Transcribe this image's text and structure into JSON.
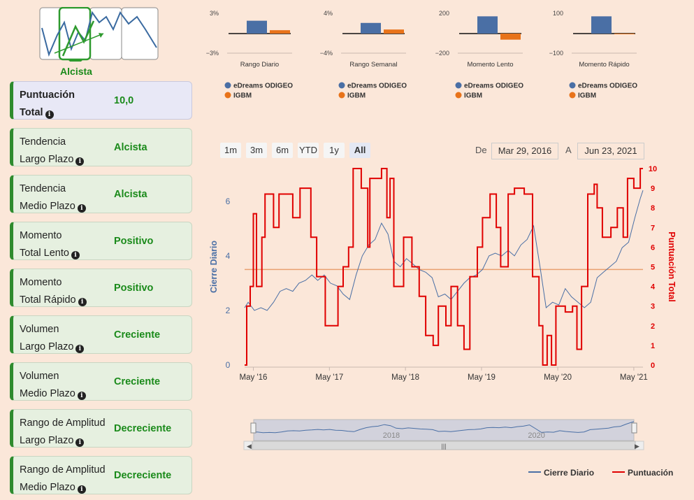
{
  "logo": {
    "label": "Alcista"
  },
  "cards": [
    {
      "label1": "Puntuación",
      "label2": "Total",
      "value": "10,0"
    },
    {
      "label1": "Tendencia",
      "label2": "Largo Plazo",
      "value": "Alcista"
    },
    {
      "label1": "Tendencia",
      "label2": "Medio Plazo",
      "value": "Alcista"
    },
    {
      "label1": "Momento",
      "label2": "Total Lento",
      "value": "Positivo"
    },
    {
      "label1": "Momento",
      "label2": "Total Rápido",
      "value": "Positivo"
    },
    {
      "label1": "Volumen",
      "label2": "Largo Plazo",
      "value": "Creciente"
    },
    {
      "label1": "Volumen",
      "label2": "Medio Plazo",
      "value": "Creciente"
    },
    {
      "label1": "Rango de Amplitud",
      "label2": "Largo Plazo",
      "value": "Decreciente"
    },
    {
      "label1": "Rango de Amplitud",
      "label2": "Medio Plazo",
      "value": "Decreciente"
    }
  ],
  "colors": {
    "stock": "#4a6fa5",
    "index": "#e8731a",
    "score": "#e00000",
    "positive": "#1a8a1a"
  },
  "mini_legend": {
    "stock": "eDreams ODIGEO",
    "index": "IGBM"
  },
  "range": {
    "buttons": [
      "1m",
      "3m",
      "6m",
      "YTD",
      "1y",
      "All"
    ],
    "active": "All",
    "from_label": "De",
    "from": "Mar 29, 2016",
    "to_label": "A",
    "to": "Jun 23, 2021"
  },
  "navigator": {
    "labels": [
      "2018",
      "2020"
    ]
  },
  "legend": {
    "close": "Cierre Diario",
    "score": "Puntuación"
  },
  "chart_data": [
    {
      "type": "bar",
      "title": "Rango Diario",
      "yticks": [
        "3%",
        "−3%"
      ],
      "ylim": [
        -3,
        3
      ],
      "series": [
        {
          "name": "eDreams ODIGEO",
          "values": [
            1.9
          ]
        },
        {
          "name": "IGBM",
          "values": [
            0.5
          ]
        }
      ]
    },
    {
      "type": "bar",
      "title": "Rango Semanal",
      "yticks": [
        "4%",
        "−4%"
      ],
      "ylim": [
        -4,
        4
      ],
      "series": [
        {
          "name": "eDreams ODIGEO",
          "values": [
            2.1
          ]
        },
        {
          "name": "IGBM",
          "values": [
            0.8
          ]
        }
      ]
    },
    {
      "type": "bar",
      "title": "Momento Lento",
      "yticks": [
        "200",
        "−200"
      ],
      "ylim": [
        -200,
        200
      ],
      "series": [
        {
          "name": "eDreams ODIGEO",
          "values": [
            170
          ]
        },
        {
          "name": "IGBM",
          "values": [
            -60
          ]
        }
      ]
    },
    {
      "type": "bar",
      "title": "Momento Rápido",
      "yticks": [
        "100",
        "−100"
      ],
      "ylim": [
        -100,
        100
      ],
      "series": [
        {
          "name": "eDreams ODIGEO",
          "values": [
            85
          ]
        },
        {
          "name": "IGBM",
          "values": [
            -3
          ]
        }
      ]
    },
    {
      "type": "line",
      "ylabel_left": "Cierre Diario",
      "ylabel_right": "Puntuación Total",
      "x_ticks": [
        "May '16",
        "May '17",
        "May '18",
        "May '19",
        "May '20",
        "May '21"
      ],
      "y_left_ticks": [
        0,
        2,
        4,
        6
      ],
      "y_left_lim": [
        0,
        7.2
      ],
      "y_right_ticks": [
        0,
        1,
        2,
        3,
        4,
        5,
        6,
        7,
        8,
        9,
        10
      ],
      "y_right_lim": [
        0,
        10
      ],
      "reference_line": 3.5,
      "x_lim": [
        "2016-03-29",
        "2021-06-23"
      ],
      "series": [
        {
          "name": "Cierre Diario",
          "points": [
            [
              "2016-03-29",
              2.1
            ],
            [
              "2016-04-15",
              2.3
            ],
            [
              "2016-05-15",
              2.0
            ],
            [
              "2016-06-15",
              2.1
            ],
            [
              "2016-07-15",
              2.0
            ],
            [
              "2016-08-15",
              2.3
            ],
            [
              "2016-09-15",
              2.7
            ],
            [
              "2016-10-15",
              2.8
            ],
            [
              "2016-11-15",
              2.7
            ],
            [
              "2016-12-15",
              3.0
            ],
            [
              "2017-01-15",
              3.1
            ],
            [
              "2017-02-15",
              3.3
            ],
            [
              "2017-03-15",
              3.1
            ],
            [
              "2017-04-15",
              3.3
            ],
            [
              "2017-05-15",
              3.0
            ],
            [
              "2017-06-15",
              2.9
            ],
            [
              "2017-07-15",
              2.6
            ],
            [
              "2017-08-15",
              2.4
            ],
            [
              "2017-09-15",
              3.3
            ],
            [
              "2017-10-15",
              4.0
            ],
            [
              "2017-11-15",
              4.4
            ],
            [
              "2017-12-15",
              4.6
            ],
            [
              "2018-01-15",
              5.2
            ],
            [
              "2018-02-15",
              4.8
            ],
            [
              "2018-03-15",
              3.8
            ],
            [
              "2018-04-15",
              3.6
            ],
            [
              "2018-05-15",
              3.9
            ],
            [
              "2018-06-15",
              3.7
            ],
            [
              "2018-07-15",
              3.5
            ],
            [
              "2018-08-15",
              3.4
            ],
            [
              "2018-09-15",
              3.2
            ],
            [
              "2018-10-15",
              2.5
            ],
            [
              "2018-11-15",
              2.6
            ],
            [
              "2018-12-15",
              2.4
            ],
            [
              "2019-01-15",
              2.7
            ],
            [
              "2019-02-15",
              3.0
            ],
            [
              "2019-03-15",
              3.2
            ],
            [
              "2019-04-15",
              3.3
            ],
            [
              "2019-05-15",
              3.5
            ],
            [
              "2019-06-15",
              4.0
            ],
            [
              "2019-07-15",
              4.1
            ],
            [
              "2019-08-15",
              4.0
            ],
            [
              "2019-09-15",
              4.2
            ],
            [
              "2019-10-15",
              4.0
            ],
            [
              "2019-11-15",
              4.4
            ],
            [
              "2019-12-15",
              4.6
            ],
            [
              "2020-01-15",
              5.1
            ],
            [
              "2020-02-15",
              3.6
            ],
            [
              "2020-03-15",
              2.1
            ],
            [
              "2020-04-15",
              2.3
            ],
            [
              "2020-05-15",
              2.2
            ],
            [
              "2020-06-15",
              2.8
            ],
            [
              "2020-07-15",
              2.5
            ],
            [
              "2020-08-15",
              2.3
            ],
            [
              "2020-09-15",
              2.1
            ],
            [
              "2020-10-15",
              2.3
            ],
            [
              "2020-11-15",
              3.2
            ],
            [
              "2020-12-15",
              3.4
            ],
            [
              "2021-01-15",
              3.6
            ],
            [
              "2021-02-15",
              3.8
            ],
            [
              "2021-03-15",
              4.3
            ],
            [
              "2021-04-15",
              4.5
            ],
            [
              "2021-05-15",
              5.4
            ],
            [
              "2021-06-10",
              6.1
            ],
            [
              "2021-06-23",
              6.4
            ]
          ]
        },
        {
          "name": "Puntuación",
          "points": [
            [
              "2016-03-29",
              0
            ],
            [
              "2016-04-08",
              3
            ],
            [
              "2016-04-25",
              4
            ],
            [
              "2016-05-10",
              7.7
            ],
            [
              "2016-05-25",
              4
            ],
            [
              "2016-06-20",
              6.5
            ],
            [
              "2016-07-05",
              8.7
            ],
            [
              "2016-08-15",
              7
            ],
            [
              "2016-09-10",
              8.7
            ],
            [
              "2016-11-15",
              7.5
            ],
            [
              "2016-12-20",
              9
            ],
            [
              "2017-02-10",
              6.5
            ],
            [
              "2017-03-10",
              4.5
            ],
            [
              "2017-04-20",
              2
            ],
            [
              "2017-06-20",
              4
            ],
            [
              "2017-07-15",
              5
            ],
            [
              "2017-08-10",
              6
            ],
            [
              "2017-09-01",
              10
            ],
            [
              "2017-10-10",
              9
            ],
            [
              "2017-11-10",
              6
            ],
            [
              "2017-11-20",
              9.5
            ],
            [
              "2018-01-15",
              10
            ],
            [
              "2018-02-10",
              7.5
            ],
            [
              "2018-02-25",
              9.5
            ],
            [
              "2018-03-15",
              4
            ],
            [
              "2018-05-01",
              6.5
            ],
            [
              "2018-06-10",
              5
            ],
            [
              "2018-07-15",
              3.5
            ],
            [
              "2018-08-15",
              1.5
            ],
            [
              "2018-09-20",
              1
            ],
            [
              "2018-10-15",
              3
            ],
            [
              "2018-11-20",
              2
            ],
            [
              "2018-12-15",
              4
            ],
            [
              "2019-01-15",
              2
            ],
            [
              "2019-02-15",
              0.8
            ],
            [
              "2019-03-15",
              4.5
            ],
            [
              "2019-04-20",
              6
            ],
            [
              "2019-05-15",
              7.5
            ],
            [
              "2019-06-20",
              8.7
            ],
            [
              "2019-07-20",
              7
            ],
            [
              "2019-08-10",
              5
            ],
            [
              "2019-09-15",
              8.7
            ],
            [
              "2019-10-15",
              9
            ],
            [
              "2019-12-01",
              8.7
            ],
            [
              "2020-01-10",
              4.5
            ],
            [
              "2020-02-10",
              2
            ],
            [
              "2020-02-28",
              0
            ],
            [
              "2020-03-20",
              1.5
            ],
            [
              "2020-04-10",
              0
            ],
            [
              "2020-05-01",
              3
            ],
            [
              "2020-06-15",
              2.7
            ],
            [
              "2020-07-20",
              3
            ],
            [
              "2020-08-10",
              0.8
            ],
            [
              "2020-09-01",
              4
            ],
            [
              "2020-10-01",
              8.7
            ],
            [
              "2020-11-01",
              9.2
            ],
            [
              "2020-11-15",
              8
            ],
            [
              "2020-12-10",
              6.5
            ],
            [
              "2021-01-20",
              7
            ],
            [
              "2021-02-20",
              8
            ],
            [
              "2021-03-20",
              6.5
            ],
            [
              "2021-04-10",
              9.5
            ],
            [
              "2021-05-10",
              9
            ],
            [
              "2021-06-10",
              10
            ],
            [
              "2021-06-23",
              10
            ]
          ]
        }
      ]
    }
  ]
}
